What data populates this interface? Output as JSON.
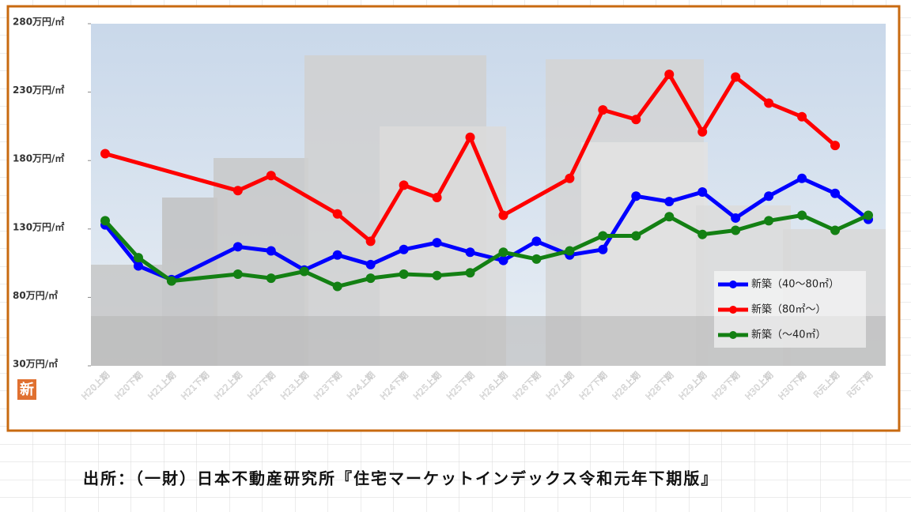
{
  "chart_data": {
    "type": "line",
    "categories": [
      "H20上期",
      "H20下期",
      "H21上期",
      "H21下期",
      "H22上期",
      "H22下期",
      "H23上期",
      "H23下期",
      "H24上期",
      "H24下期",
      "H25上期",
      "H25下期",
      "H26上期",
      "H26下期",
      "H27上期",
      "H27下期",
      "H28上期",
      "H28下期",
      "H29上期",
      "H29下期",
      "H30上期",
      "H30下期",
      "R元上期",
      "R元下期"
    ],
    "series": [
      {
        "name": "新築（40～80㎡）",
        "color": "#0000ff",
        "values": [
          133,
          103,
          93,
          null,
          117,
          114,
          100,
          111,
          104,
          115,
          120,
          113,
          107,
          121,
          111,
          115,
          154,
          150,
          157,
          138,
          154,
          167,
          156,
          137
        ]
      },
      {
        "name": "新築（80㎡～）",
        "color": "#ff0000",
        "values": [
          185,
          null,
          null,
          null,
          158,
          169,
          null,
          141,
          121,
          162,
          153,
          197,
          140,
          null,
          167,
          217,
          210,
          243,
          201,
          241,
          222,
          212,
          191,
          null
        ]
      },
      {
        "name": "新築（～40㎡）",
        "color": "#138013",
        "values": [
          136,
          109,
          92,
          null,
          97,
          94,
          99,
          88,
          94,
          97,
          96,
          98,
          113,
          108,
          114,
          125,
          125,
          139,
          126,
          129,
          136,
          140,
          129,
          140
        ]
      }
    ],
    "ylim": [
      30,
      280
    ],
    "yticks": [
      {
        "value": 30,
        "label": "30万円/㎡"
      },
      {
        "value": 80,
        "label": "80万円/㎡"
      },
      {
        "value": 130,
        "label": "130万円/㎡"
      },
      {
        "value": 180,
        "label": "180万円/㎡"
      },
      {
        "value": 230,
        "label": "230万円/㎡"
      },
      {
        "value": 280,
        "label": "280万円/㎡"
      }
    ],
    "span_gaps": true,
    "legend": "right",
    "badge": "新",
    "source": "出所：（一財）日本不動産研究所『住宅マーケットインデックス令和元年下期版』"
  }
}
